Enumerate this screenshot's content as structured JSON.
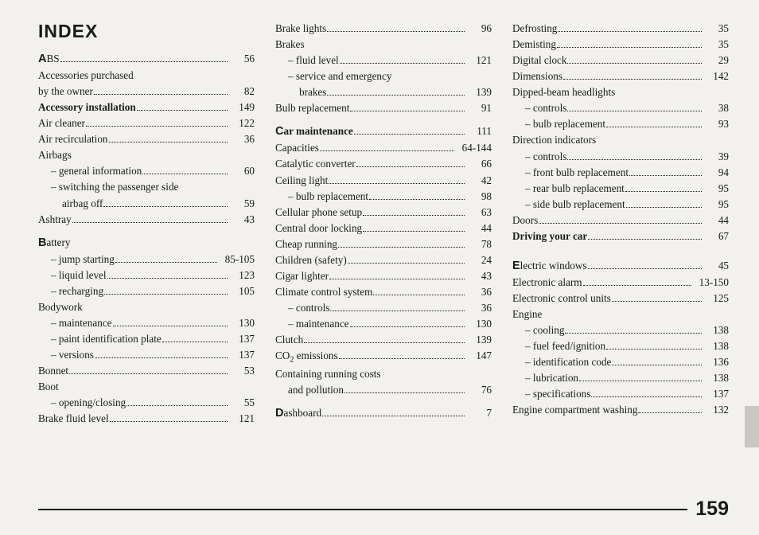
{
  "title": "INDEX",
  "page_number": "159",
  "columns": [
    [
      {
        "text_dropcap": "A",
        "text": "BS",
        "page": "56"
      },
      {
        "text": "Accessories purchased",
        "nopage": true
      },
      {
        "text": "by the owner",
        "page": "82"
      },
      {
        "text": "Accessory installation",
        "bold": true,
        "page": "149"
      },
      {
        "text": "Air cleaner",
        "page": "122"
      },
      {
        "text": "Air recirculation",
        "page": "36"
      },
      {
        "text": "Airbags",
        "nopage": true
      },
      {
        "text": "– general information",
        "sub": true,
        "page": "60"
      },
      {
        "text": "– switching the passenger side",
        "sub": true,
        "nopage": true
      },
      {
        "text": "airbag off",
        "sub": true,
        "subextra": true,
        "page": "59"
      },
      {
        "text": "Ashtray",
        "page": "43"
      },
      {
        "spacer": true
      },
      {
        "text_dropcap": "B",
        "text": "attery",
        "nopage": true
      },
      {
        "text": "– jump starting",
        "sub": true,
        "page": "85-105"
      },
      {
        "text": "– liquid level",
        "sub": true,
        "page": "123"
      },
      {
        "text": "– recharging",
        "sub": true,
        "page": "105"
      },
      {
        "text": "Bodywork",
        "nopage": true
      },
      {
        "text": "– maintenance",
        "sub": true,
        "page": "130"
      },
      {
        "text": "– paint identification plate",
        "sub": true,
        "page": "137"
      },
      {
        "text": "– versions",
        "sub": true,
        "page": "137"
      },
      {
        "text": "Bonnet",
        "page": "53"
      },
      {
        "text": "Boot",
        "nopage": true
      },
      {
        "text": "– opening/closing",
        "sub": true,
        "page": "55"
      },
      {
        "text": "Brake fluid level",
        "page": "121"
      }
    ],
    [
      {
        "text": "Brake lights",
        "page": "96"
      },
      {
        "text": "Brakes",
        "nopage": true
      },
      {
        "text": "– fluid level",
        "sub": true,
        "page": "121"
      },
      {
        "text": "– service and emergency",
        "sub": true,
        "nopage": true
      },
      {
        "text": "brakes",
        "sub": true,
        "subextra": true,
        "page": "139"
      },
      {
        "text": "Bulb replacement",
        "page": "91"
      },
      {
        "spacer": true
      },
      {
        "text_dropcap": "C",
        "text": "ar maintenance",
        "bold": true,
        "page": "111"
      },
      {
        "text": "Capacities",
        "page": "64-144"
      },
      {
        "text": "Catalytic converter",
        "page": "66"
      },
      {
        "text": "Ceiling light",
        "page": "42"
      },
      {
        "text": "– bulb replacement",
        "sub": true,
        "page": "98"
      },
      {
        "text": "Cellular phone setup",
        "page": "63"
      },
      {
        "text": "Central door locking",
        "page": "44"
      },
      {
        "text": "Cheap running",
        "page": "78"
      },
      {
        "text": "Children (safety)",
        "page": "24"
      },
      {
        "text": "Cigar lighter",
        "page": "43"
      },
      {
        "text": "Climate control system",
        "page": "36"
      },
      {
        "text": "– controls",
        "sub": true,
        "page": "36"
      },
      {
        "text": "– maintenance",
        "sub": true,
        "page": "130"
      },
      {
        "text": "Clutch",
        "page": "139"
      },
      {
        "html": "CO<sub>2</sub> emissions",
        "page": "147"
      },
      {
        "text": "Containing running costs",
        "nopage": true
      },
      {
        "text": "and pollution",
        "sub": true,
        "page": "76"
      },
      {
        "spacer": true
      },
      {
        "text_dropcap": "D",
        "text": "ashboard",
        "page": "7"
      }
    ],
    [
      {
        "text": "Defrosting",
        "page": "35"
      },
      {
        "text": "Demisting",
        "page": "35"
      },
      {
        "text": "Digital clock",
        "page": "29"
      },
      {
        "text": "Dimensions",
        "page": "142"
      },
      {
        "text": "Dipped-beam headlights",
        "nopage": true
      },
      {
        "text": "– controls",
        "sub": true,
        "page": "38"
      },
      {
        "text": "– bulb replacement",
        "sub": true,
        "page": "93"
      },
      {
        "text": "Direction indicators",
        "nopage": true
      },
      {
        "text": "– controls",
        "sub": true,
        "page": "39"
      },
      {
        "text": "– front bulb replacement",
        "sub": true,
        "page": "94"
      },
      {
        "text": "– rear bulb replacement",
        "sub": true,
        "page": "95"
      },
      {
        "text": "– side bulb replacement",
        "sub": true,
        "page": "95"
      },
      {
        "text": "Doors",
        "page": "44"
      },
      {
        "text": "Driving your car",
        "bold": true,
        "page": "67"
      },
      {
        "spacer": true
      },
      {
        "spacer": true
      },
      {
        "text_dropcap": "E",
        "text": "lectric windows",
        "page": "45"
      },
      {
        "text": "Electronic alarm",
        "page": "13-150"
      },
      {
        "text": "Electronic control units",
        "page": "125"
      },
      {
        "text": "Engine",
        "nopage": true
      },
      {
        "text": "– cooling",
        "sub": true,
        "page": "138"
      },
      {
        "text": "– fuel feed/ignition",
        "sub": true,
        "page": "138"
      },
      {
        "text": "– identification code",
        "sub": true,
        "page": "136"
      },
      {
        "text": "– lubrication",
        "sub": true,
        "page": "138"
      },
      {
        "text": "– specifications",
        "sub": true,
        "page": "137"
      },
      {
        "text": "Engine compartment washing",
        "page": "132"
      }
    ]
  ]
}
